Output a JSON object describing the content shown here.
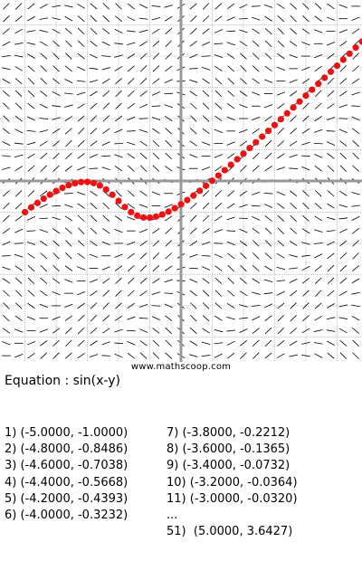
{
  "watermark": "www.mathscoop.com",
  "equation_label": "Equation : sin(x-y)",
  "colors": {
    "axis": "#999999",
    "grid": "#a8a8a8",
    "slope": "#000000",
    "solution": "#ee1111"
  },
  "points_list": {
    "left": [
      "1) (-5.0000, -1.0000)",
      "2) (-4.8000, -0.8486)",
      "3) (-4.6000, -0.7038)",
      "4) (-4.4000, -0.5668)",
      "5) (-4.2000, -0.4393)",
      "6) (-4.0000, -0.3232)"
    ],
    "right": [
      "7) (-3.8000, -0.2212)",
      "8) (-3.6000, -0.1365)",
      "9) (-3.4000, -0.0732)",
      "10) (-3.2000, -0.0364)",
      "11) (-3.0000, -0.0320)",
      "...",
      "51)  (5.0000, 3.6427)"
    ]
  },
  "chart_data": {
    "type": "scatter",
    "plot": "slope field with Euler solution",
    "equation": "sin(x-y)",
    "xlim": [
      -5.8,
      5.8
    ],
    "ylim": [
      -5.8,
      5.8
    ],
    "grid": true,
    "step": 0.2,
    "start": [
      -5.0,
      -1.0
    ],
    "num_points": 51
  }
}
